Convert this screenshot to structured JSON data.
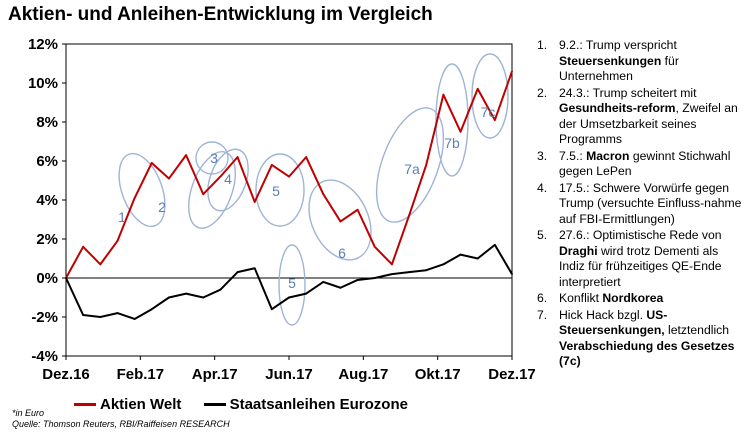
{
  "chart_data": {
    "type": "line",
    "title": "Aktien- und Anleihen-Entwicklung im Vergleich",
    "xlabel": "",
    "ylabel": "",
    "ylim": [
      -4,
      12
    ],
    "yticks": [
      "-4%",
      "-2%",
      "0%",
      "2%",
      "4%",
      "6%",
      "8%",
      "10%",
      "12%"
    ],
    "xticks": [
      "Dez.16",
      "Feb.17",
      "Apr.17",
      "Jun.17",
      "Aug.17",
      "Okt.17",
      "Dez.17"
    ],
    "x": [
      0,
      2,
      4,
      6,
      8,
      10,
      12,
      14,
      16,
      18,
      20,
      22,
      24,
      26,
      28,
      30,
      32,
      34,
      36,
      38,
      40,
      42,
      44,
      46,
      48,
      50,
      52
    ],
    "series": [
      {
        "name": "Aktien Welt",
        "color": "#c00000",
        "values": [
          0,
          1.6,
          0.7,
          1.9,
          4.1,
          5.9,
          5.1,
          6.3,
          4.3,
          5.2,
          6.2,
          3.9,
          5.8,
          5.2,
          6.2,
          4.3,
          2.9,
          3.5,
          1.6,
          0.7,
          3.2,
          5.8,
          9.4,
          7.5,
          9.7,
          8.1,
          10.6
        ]
      },
      {
        "name": "Staatsanleihen Eurozone",
        "color": "#000000",
        "values": [
          0,
          -1.9,
          -2.0,
          -1.8,
          -2.1,
          -1.6,
          -1.0,
          -0.8,
          -1.0,
          -0.6,
          0.3,
          0.5,
          -1.6,
          -1.0,
          -0.8,
          -0.2,
          -0.5,
          -0.1,
          0.0,
          0.2,
          0.3,
          0.4,
          0.7,
          1.2,
          1.0,
          1.7,
          0.2
        ]
      }
    ],
    "annotations": [
      "1",
      "2",
      "3",
      "4",
      "5",
      "5",
      "6",
      "7a",
      "7b",
      "7c"
    ]
  },
  "legend": {
    "stocks": "Aktien Welt",
    "bonds": "Staatsanleihen Eurozone"
  },
  "notes": {
    "unit": "*in Euro",
    "source": "Quelle: Thomson Reuters, RBI/Raiffeisen RESEARCH"
  },
  "events": [
    {
      "num": "1.",
      "pre": "9.2.: Trump verspricht",
      "bold": "Steuersenkungen",
      "post": "für Unternehmen"
    },
    {
      "num": "2.",
      "pre": "24.3.: Trump scheitert mit",
      "bold": "Gesundheits-reform",
      "post": ", Zweifel an der Umsetzbarkeit seines Programms"
    },
    {
      "num": "3.",
      "pre": "7.5.:",
      "bold": "Macron",
      "post": "gewinnt Stichwahl gegen LePen"
    },
    {
      "num": "4.",
      "pre": "17.5.: Schwere Vorwürfe gegen Trump (versuchte Einfluss-nahme auf FBI-Ermittlungen)",
      "bold": "",
      "post": ""
    },
    {
      "num": "5.",
      "pre": "27.6.: Optimistische Rede von",
      "bold": "Draghi",
      "post": "wird trotz Dementi als Indiz für frühzeitiges QE-Ende interpretiert"
    },
    {
      "num": "6.",
      "pre": "Konflikt",
      "bold": "Nordkorea",
      "post": ""
    },
    {
      "num": "7.",
      "pre": "Hick Hack bzgl.",
      "bold": "US-Steuersenkungen,",
      "post": "letztendlich",
      "bold2": "Verabschiedung des Gesetzes (7c)"
    }
  ]
}
